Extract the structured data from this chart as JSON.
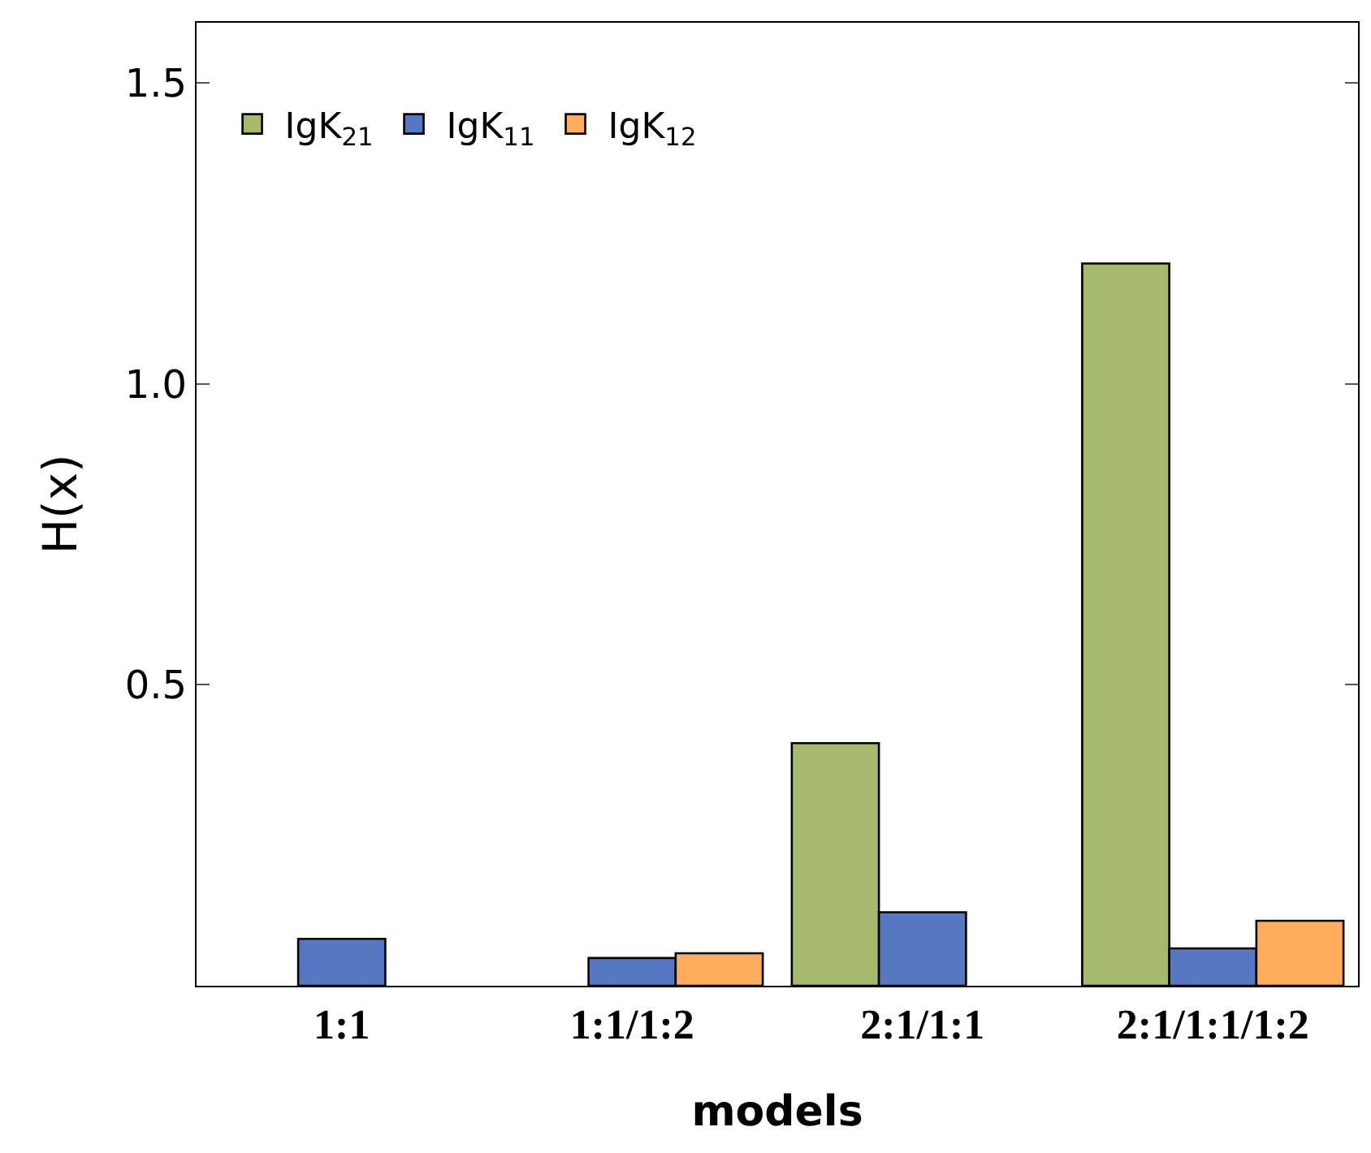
{
  "chart_data": {
    "type": "bar",
    "xlabel": "models",
    "ylabel": "H(x)",
    "categories": [
      "1:1",
      "1:1/1:2",
      "2:1/1:1",
      "2:1/1:1/1:2"
    ],
    "series": [
      {
        "name": "IgK$_{21}$",
        "color": "#a6b86b",
        "values": [
          null,
          null,
          0.403,
          1.2
        ]
      },
      {
        "name": "IgK$_{11}$",
        "color": "#5677c1",
        "values": [
          0.078,
          0.046,
          0.122,
          0.062
        ]
      },
      {
        "name": "IgK$_{12}$",
        "color": "#ffad5c",
        "values": [
          null,
          0.054,
          null,
          0.108
        ]
      }
    ],
    "ylim": [
      0,
      1.6
    ],
    "yticks": [
      {
        "value": 0.5,
        "label": "0.5"
      },
      {
        "value": 1,
        "label": "1.0"
      },
      {
        "value": 1.5,
        "label": "1.5"
      }
    ],
    "grid": false,
    "legend": "top left"
  }
}
